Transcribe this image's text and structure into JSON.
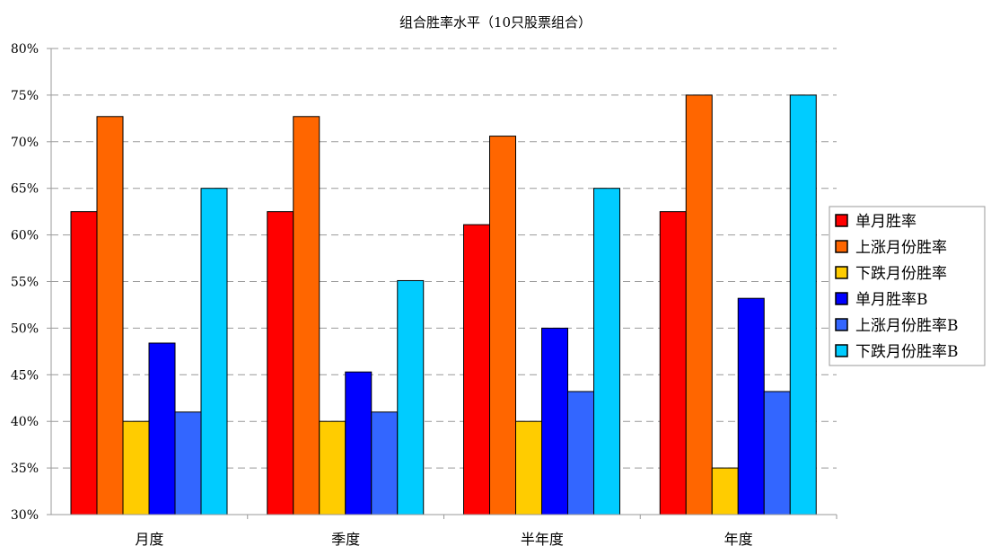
{
  "chart_data": {
    "type": "bar",
    "title": "组合胜率水平（10只股票组合）",
    "xlabel": "",
    "ylabel": "",
    "categories": [
      "月度",
      "季度",
      "半年度",
      "年度"
    ],
    "ylim": [
      30,
      80
    ],
    "yticks": [
      "30%",
      "35%",
      "40%",
      "45%",
      "50%",
      "55%",
      "60%",
      "65%",
      "70%",
      "75%",
      "80%"
    ],
    "grid": true,
    "legend_position": "right",
    "series": [
      {
        "name": "单月胜率",
        "color": "#ff0000",
        "values": [
          62.5,
          62.5,
          61.1,
          62.5
        ]
      },
      {
        "name": "上涨月份胜率",
        "color": "#ff6600",
        "values": [
          72.7,
          72.7,
          70.6,
          75.0
        ]
      },
      {
        "name": "下跌月份胜率",
        "color": "#ffcc00",
        "values": [
          40.0,
          40.0,
          40.0,
          35.0
        ]
      },
      {
        "name": "单月胜率B",
        "color": "#0000ff",
        "values": [
          48.4,
          45.3,
          50.0,
          53.2
        ]
      },
      {
        "name": "上涨月份胜率B",
        "color": "#3366ff",
        "values": [
          41.0,
          41.0,
          43.2,
          43.2
        ]
      },
      {
        "name": "下跌月份胜率B",
        "color": "#00ccff",
        "values": [
          65.0,
          55.1,
          65.0,
          75.0
        ]
      }
    ]
  }
}
